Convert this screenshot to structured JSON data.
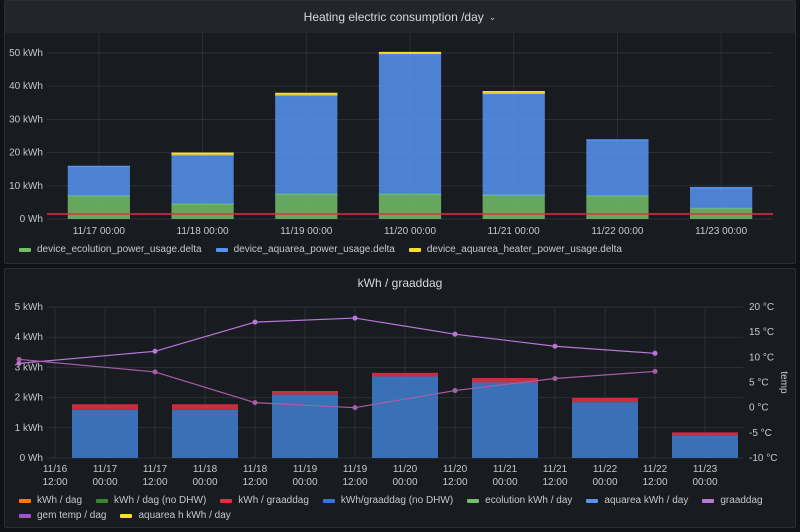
{
  "chart_data": [
    {
      "type": "bar",
      "title": "Heating electric consumption /day",
      "stacked": true,
      "categories": [
        "11/17 00:00",
        "11/18 00:00",
        "11/19 00:00",
        "11/20 00:00",
        "11/21 00:00",
        "11/22 00:00",
        "11/23 00:00"
      ],
      "yticks": [
        "0 Wh",
        "10 kWh",
        "20 kWh",
        "30 kWh",
        "40 kWh",
        "50 kWh"
      ],
      "ylim": [
        0,
        56
      ],
      "threshold": 1.5,
      "series": [
        {
          "name": "device_ecolution_power_usage.delta",
          "color": "#73bf69",
          "values": [
            7,
            4.5,
            7.5,
            7.5,
            7.2,
            7,
            3.2
          ]
        },
        {
          "name": "device_aquarea_power_usage.delta",
          "color": "#5794f2",
          "values": [
            8.8,
            14.7,
            29.7,
            42.2,
            30.5,
            16.8,
            6.2
          ]
        },
        {
          "name": "device_aquarea_heater_power_usage.delta",
          "color": "#fade2a",
          "values": [
            0,
            0.6,
            0.6,
            0.4,
            0.6,
            0,
            0
          ]
        }
      ]
    },
    {
      "type": "bar",
      "title": "kWh / graaddag",
      "xticks": [
        "11/16\n12:00",
        "11/17\n00:00",
        "11/17\n12:00",
        "11/18\n00:00",
        "11/18\n12:00",
        "11/19\n00:00",
        "11/19\n12:00",
        "11/20\n00:00",
        "11/20\n12:00",
        "11/21\n00:00",
        "11/21\n12:00",
        "11/22\n00:00",
        "11/22\n12:00",
        "11/23\n00:00"
      ],
      "yticks_left": [
        "0 Wh",
        "1 kWh",
        "2 kWh",
        "3 kWh",
        "4 kWh",
        "5 kWh"
      ],
      "yticks_right": [
        "-10 °C",
        "-5 °C",
        "0 °C",
        "5 °C",
        "10 °C",
        "15 °C",
        "20 °C"
      ],
      "ylabel_right": "temp",
      "ylim_left": [
        0,
        5
      ],
      "ylim_right": [
        -10,
        20
      ],
      "x": [
        1,
        2,
        3,
        4,
        5,
        6,
        7
      ],
      "series": [
        {
          "name": "kWh/graaddag (no DHW)",
          "color": "#3f7fd1",
          "values": [
            1.6,
            1.6,
            2.1,
            2.7,
            2.5,
            1.85,
            0.75
          ]
        },
        {
          "name": "kWh / graaddag",
          "color": "#e02f44",
          "values": [
            0.18,
            0.18,
            0.12,
            0.12,
            0.15,
            0.14,
            0.1
          ]
        },
        {
          "name": "graaddag",
          "color": "#b877d9",
          "values": [
            8.8,
            11.2,
            17,
            17.8,
            14.6,
            12.2,
            10.8
          ]
        },
        {
          "name": "gem temp / dag",
          "color": "#a65ea6",
          "values": [
            9.6,
            7.1,
            1,
            0,
            3.4,
            5.8,
            7.2
          ]
        }
      ]
    }
  ],
  "legend2": [
    {
      "name": "kWh / dag",
      "color": "#ff780a"
    },
    {
      "name": "kWh / dag (no DHW)",
      "color": "#37872d"
    },
    {
      "name": "kWh / graaddag",
      "color": "#e02f44"
    },
    {
      "name": "kWh/graaddag (no DHW)",
      "color": "#3274d9"
    },
    {
      "name": "ecolution kWh / day",
      "color": "#73bf69"
    },
    {
      "name": "aquarea kWh / day",
      "color": "#5794f2"
    },
    {
      "name": "graaddag",
      "color": "#b877d9"
    },
    {
      "name": "gem temp / dag",
      "color": "#a352cc"
    },
    {
      "name": "aquarea h kWh / day",
      "color": "#fade2a"
    }
  ],
  "icons": {
    "title_menu": "chevron-down-icon"
  }
}
